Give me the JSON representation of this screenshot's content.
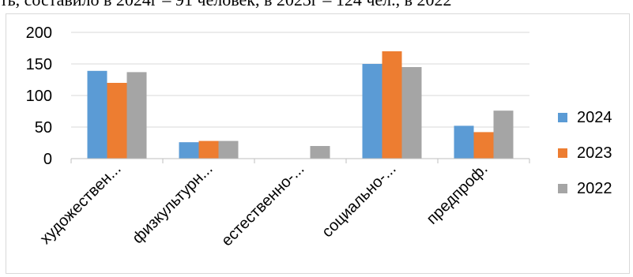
{
  "top_text": "ть, составило в 2024г – 91 человек, в 2023г – 124 чел., в 2022",
  "chart_data": {
    "type": "bar",
    "categories": [
      "художествен...",
      "физкультурн...",
      "естественно-...",
      "социально-...",
      "предпроф."
    ],
    "series": [
      {
        "name": "2024",
        "color": "#5b9bd5",
        "values": [
          139,
          26,
          0,
          150,
          52
        ]
      },
      {
        "name": "2023",
        "color": "#ed7d31",
        "values": [
          120,
          28,
          0,
          170,
          42
        ]
      },
      {
        "name": "2022",
        "color": "#a5a5a5",
        "values": [
          137,
          28,
          20,
          145,
          76
        ]
      }
    ],
    "yticks": [
      0,
      50,
      100,
      150,
      200
    ],
    "ylim": [
      0,
      200
    ],
    "grid": true,
    "legend_position": "right"
  }
}
